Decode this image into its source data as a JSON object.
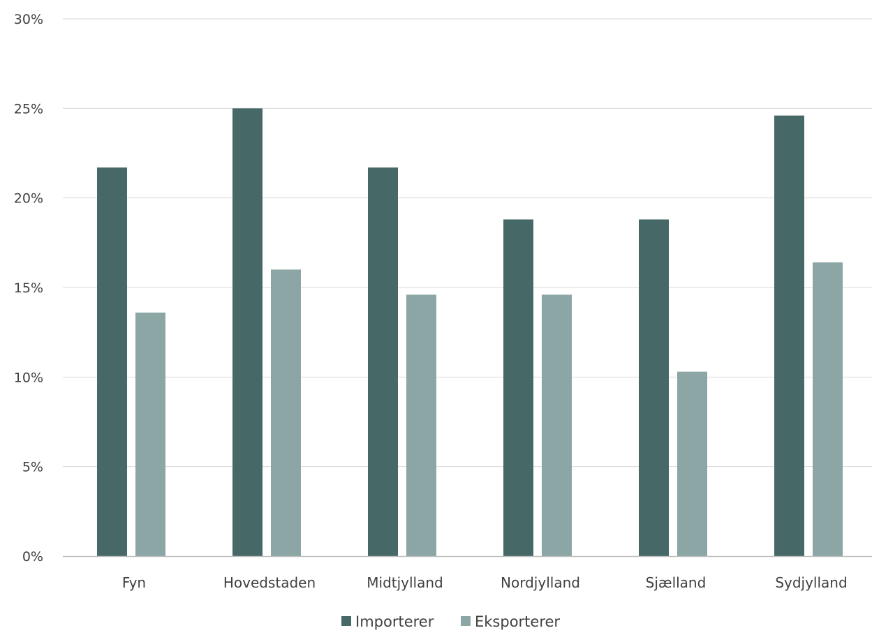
{
  "chart_data": {
    "type": "bar",
    "title": "",
    "xlabel": "",
    "ylabel": "",
    "categories": [
      "Fyn",
      "Hovedstaden",
      "Midtjylland",
      "Nordjylland",
      "Sjælland",
      "Sydjylland"
    ],
    "series": [
      {
        "name": "Importerer",
        "color": "#466967",
        "values": [
          21.7,
          25.0,
          21.7,
          18.8,
          18.8,
          24.6
        ]
      },
      {
        "name": "Eksporterer",
        "color": "#8ca6a5",
        "values": [
          13.6,
          16.0,
          14.6,
          14.6,
          10.3,
          16.4
        ]
      }
    ],
    "ylim": [
      0,
      30
    ],
    "yticks": [
      0,
      5,
      10,
      15,
      20,
      25,
      30
    ],
    "ytick_labels": [
      "0%",
      "5%",
      "10%",
      "15%",
      "20%",
      "25%",
      "30%"
    ],
    "grid": true,
    "legend_position": "bottom-center"
  }
}
